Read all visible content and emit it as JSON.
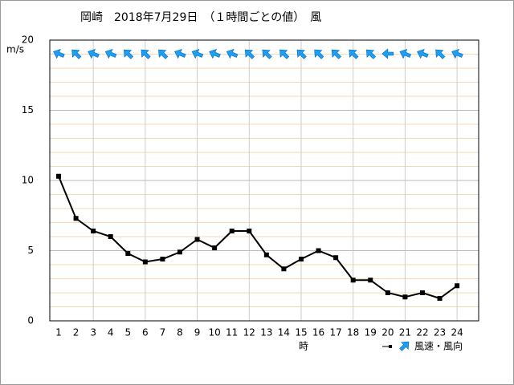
{
  "chart_data": {
    "type": "line",
    "title": "岡崎　2018年7月29日　（１時間ごとの値）　風",
    "y_label": "m/s",
    "x_label": "時",
    "legend_label": "風速・風向",
    "categories": [
      "1",
      "2",
      "3",
      "4",
      "5",
      "6",
      "7",
      "8",
      "9",
      "10",
      "11",
      "12",
      "13",
      "14",
      "15",
      "16",
      "17",
      "18",
      "19",
      "20",
      "21",
      "22",
      "23",
      "24"
    ],
    "series": [
      {
        "name": "風速",
        "color": "#000000",
        "values": [
          10.3,
          7.3,
          6.4,
          6.0,
          4.8,
          4.2,
          4.4,
          4.9,
          5.8,
          5.2,
          6.4,
          6.4,
          4.7,
          3.7,
          4.4,
          5.0,
          4.5,
          2.9,
          2.9,
          2.0,
          1.7,
          2.0,
          1.6,
          2.5
        ]
      }
    ],
    "wind_direction_deg": [
      112.5,
      135,
      112.5,
      112.5,
      135,
      135,
      135,
      112.5,
      112.5,
      112.5,
      112.5,
      135,
      135,
      135,
      135,
      135,
      135,
      135,
      135,
      90,
      112.5,
      112.5,
      135,
      112.5
    ],
    "arrow_color": "#1ea0f0",
    "ylim": [
      0,
      20
    ],
    "yticks": [
      0,
      5,
      10,
      15,
      20
    ],
    "grid": true
  }
}
